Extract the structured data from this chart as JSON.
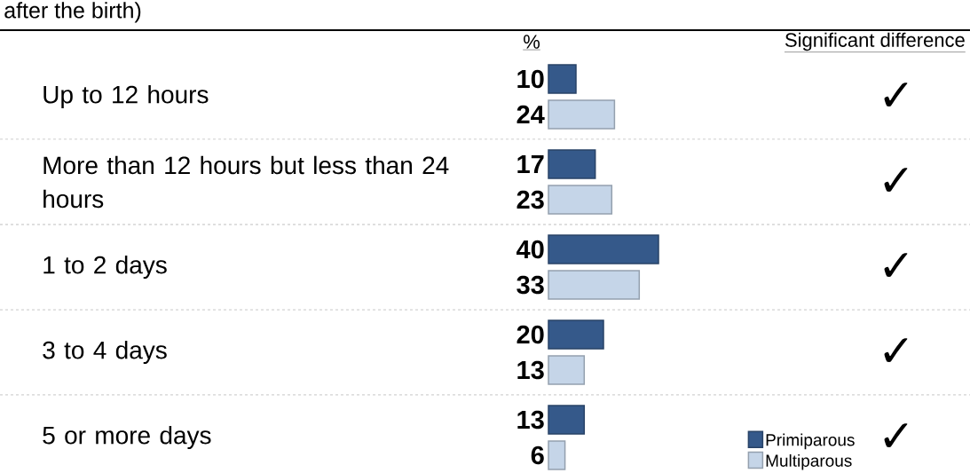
{
  "chart_data": {
    "type": "bar",
    "orientation": "horizontal",
    "title": "after the birth)",
    "xlabel": "%",
    "categories": [
      "Up to 12 hours",
      "More than 12 hours but less than 24 hours",
      "1 to 2 days",
      "3 to 4 days",
      "5 or more days"
    ],
    "series": [
      {
        "name": "Primiparous",
        "color": "#35598a",
        "values": [
          10,
          17,
          40,
          20,
          13
        ]
      },
      {
        "name": "Multiparous",
        "color": "#c5d5e8",
        "values": [
          24,
          23,
          33,
          13,
          6
        ]
      }
    ],
    "data_labels": true,
    "legend": "bottom right",
    "annotations": [
      "Significant difference",
      "✓",
      "✓",
      "✓",
      "✓",
      "✓"
    ]
  }
}
